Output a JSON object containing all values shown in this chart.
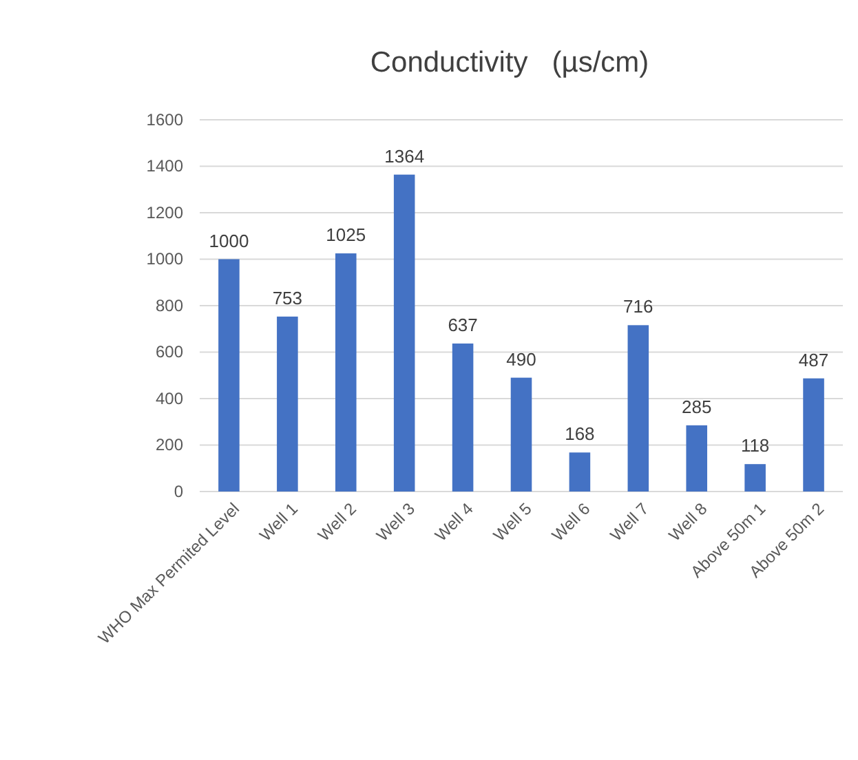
{
  "chart_data": {
    "type": "bar",
    "title": "Conductivity   (µs/cm)",
    "categories": [
      "WHO Max Permited Level",
      "Well 1",
      "Well 2",
      "Well 3",
      "Well 4",
      "Well 5",
      "Well 6",
      "Well 7",
      "Well 8",
      "Above 50m 1",
      "Above 50m 2"
    ],
    "values": [
      1000,
      753,
      1025,
      1364,
      637,
      490,
      168,
      716,
      285,
      118,
      487
    ],
    "color": "#4472c4",
    "ylim": [
      0,
      1600
    ],
    "yticks": [
      0,
      200,
      400,
      600,
      800,
      1000,
      1200,
      1400,
      1600
    ],
    "grid": "y",
    "data_labels": true
  }
}
